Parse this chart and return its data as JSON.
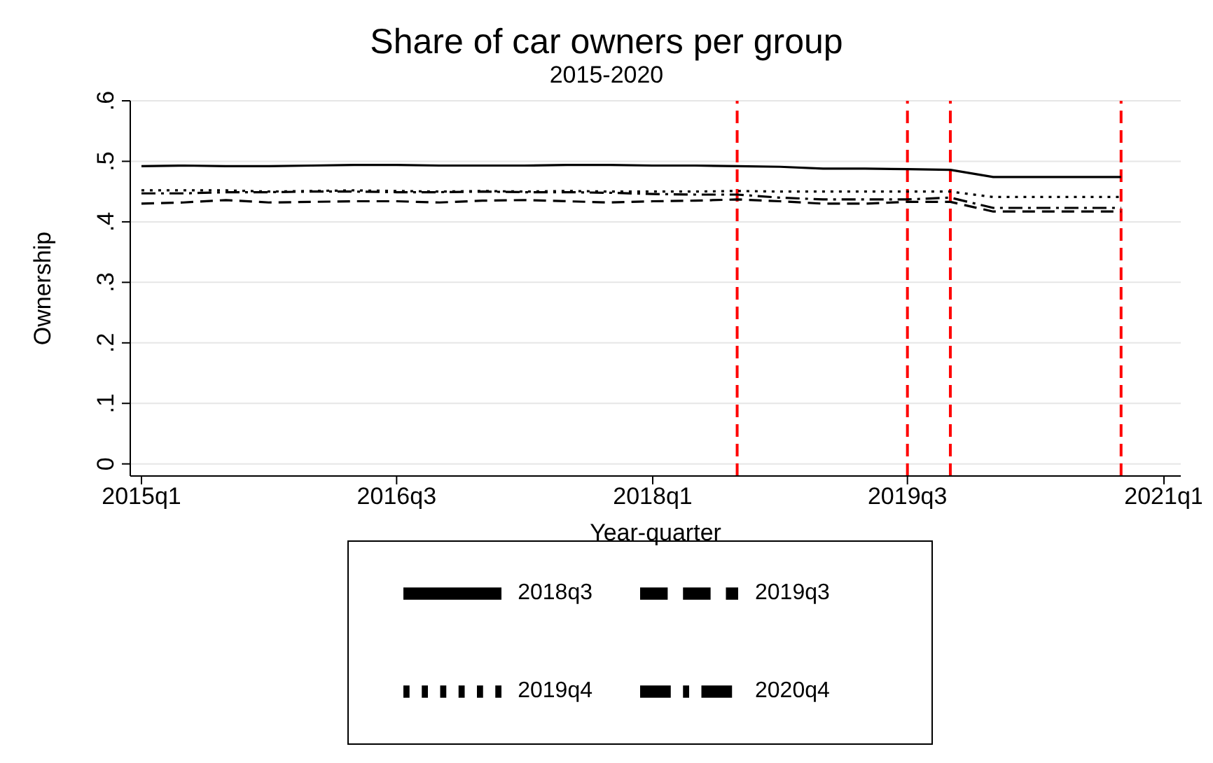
{
  "chart_data": {
    "type": "line",
    "title": "Share of car owners per group",
    "subtitle": "2015-2020",
    "xlabel": "Year-quarter",
    "ylabel": "Ownership",
    "x": [
      "2015-01",
      "2015-04",
      "2015-07",
      "2015-10",
      "2016-01",
      "2016-04",
      "2016-07",
      "2016-10",
      "2017-01",
      "2017-04",
      "2017-07",
      "2017-10",
      "2018-01",
      "2018-04",
      "2018-07",
      "2018-10",
      "2019-01",
      "2019-04",
      "2019-07",
      "2019-10",
      "2020-01",
      "2020-04",
      "2020-07",
      "2020-10"
    ],
    "series": [
      {
        "name": "2018q3",
        "color": "#000000",
        "line_style": "solid",
        "values": [
          0.492,
          0.493,
          0.492,
          0.492,
          0.493,
          0.494,
          0.494,
          0.493,
          0.493,
          0.493,
          0.494,
          0.494,
          0.493,
          0.493,
          0.492,
          0.491,
          0.488,
          0.488,
          0.487,
          0.486,
          0.474,
          0.474,
          0.474,
          0.474
        ]
      },
      {
        "name": "2019q3",
        "color": "#000000",
        "line_style": "dashed",
        "values": [
          0.43,
          0.432,
          0.436,
          0.432,
          0.433,
          0.434,
          0.434,
          0.432,
          0.435,
          0.436,
          0.434,
          0.432,
          0.434,
          0.435,
          0.437,
          0.434,
          0.43,
          0.43,
          0.433,
          0.433,
          0.417,
          0.417,
          0.417,
          0.417
        ]
      },
      {
        "name": "2019q4",
        "color": "#000000",
        "line_style": "dotted",
        "values": [
          0.452,
          0.452,
          0.452,
          0.45,
          0.451,
          0.452,
          0.451,
          0.45,
          0.451,
          0.45,
          0.451,
          0.45,
          0.45,
          0.45,
          0.451,
          0.45,
          0.45,
          0.45,
          0.45,
          0.45,
          0.441,
          0.441,
          0.441,
          0.441
        ]
      },
      {
        "name": "2020q4",
        "color": "#000000",
        "line_style": "dashdot",
        "values": [
          0.447,
          0.447,
          0.449,
          0.449,
          0.45,
          0.45,
          0.449,
          0.449,
          0.45,
          0.449,
          0.449,
          0.448,
          0.446,
          0.445,
          0.445,
          0.44,
          0.437,
          0.437,
          0.437,
          0.44,
          0.423,
          0.423,
          0.423,
          0.423
        ]
      }
    ],
    "xlim": [
      "2014-12-08",
      "2021-02-06"
    ],
    "xticks": [
      {
        "value": "2015-01",
        "label": "2015q1"
      },
      {
        "value": "2016-07",
        "label": "2016q3"
      },
      {
        "value": "2018-01",
        "label": "2018q1"
      },
      {
        "value": "2019-07",
        "label": "2019q3"
      },
      {
        "value": "2021-01",
        "label": "2021q1"
      }
    ],
    "ylim": [
      -0.02,
      0.6
    ],
    "yticks": [
      {
        "value": 0,
        "label": "0"
      },
      {
        "value": 0.1,
        "label": ".1"
      },
      {
        "value": 0.2,
        "label": ".2"
      },
      {
        "value": 0.3,
        "label": ".3"
      },
      {
        "value": 0.4,
        "label": ".4"
      },
      {
        "value": 0.5,
        "label": ".5"
      },
      {
        "value": 0.6,
        "label": ".6"
      }
    ],
    "grid": "y",
    "legend": "bottom",
    "marker": "none",
    "ref_lines": [
      {
        "axis": "x",
        "value": "2018-07",
        "color": "#ff0000",
        "line_style": "dashed"
      },
      {
        "axis": "x",
        "value": "2019-07",
        "color": "#ff0000",
        "line_style": "dashed"
      },
      {
        "axis": "x",
        "value": "2019-10",
        "color": "#ff0000",
        "line_style": "dashed"
      },
      {
        "axis": "x",
        "value": "2020-10",
        "color": "#ff0000",
        "line_style": "dashed"
      }
    ]
  }
}
